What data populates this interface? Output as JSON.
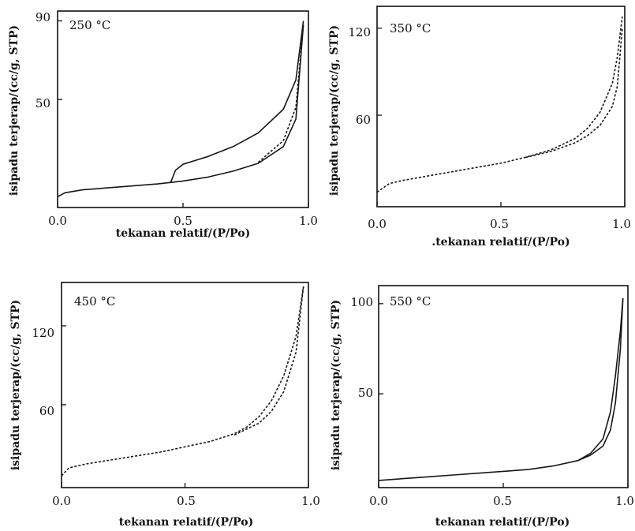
{
  "chart_data": [
    {
      "type": "line",
      "title": "250 °C",
      "xlabel": "tekanan relatif/(P/Po)",
      "ylabel": "isipadu terjerap/(cc/g, STP)",
      "xlim": [
        0,
        1
      ],
      "ylim": [
        -5,
        95
      ],
      "x_ticks": [
        0,
        0.5,
        1.0
      ],
      "x_tick_labels": [
        "0.0",
        "0.5",
        "1.0"
      ],
      "y_ticks": [
        50,
        90
      ],
      "y_tick_labels": [
        "50",
        "90"
      ],
      "series": [
        {
          "style": "solid",
          "x": [
            0.0,
            0.03,
            0.1,
            0.2,
            0.3,
            0.4,
            0.5,
            0.6,
            0.7,
            0.8,
            0.9,
            0.95,
            0.98
          ],
          "y": [
            0.5,
            2.5,
            4,
            5,
            6,
            7,
            8.5,
            10.5,
            13.5,
            17.5,
            26,
            40,
            88
          ]
        },
        {
          "style": "solid",
          "x": [
            0.45,
            0.47,
            0.5,
            0.6,
            0.7,
            0.8,
            0.9,
            0.95,
            0.98
          ],
          "y": [
            7.5,
            14,
            17,
            21,
            26,
            33,
            45,
            60,
            90
          ]
        },
        {
          "style": "dashed",
          "x": [
            0.8,
            0.9,
            0.95,
            0.98
          ],
          "y": [
            18,
            29,
            46,
            88
          ]
        }
      ]
    },
    {
      "type": "line",
      "title": "350 °C",
      "xlabel": ".tekanan relatif/(P/Po)",
      "ylabel": "isipadu terjerap/(cc/g, STP)",
      "xlim": [
        0,
        1
      ],
      "ylim": [
        -3,
        135
      ],
      "x_ticks": [
        0,
        0.5,
        1.0
      ],
      "x_tick_labels": [
        "0.0",
        "0.5",
        "1.0"
      ],
      "y_ticks": [
        60,
        120
      ],
      "y_tick_labels": [
        "60",
        "120"
      ],
      "series": [
        {
          "style": "dotted",
          "x": [
            0.0,
            0.05,
            0.1,
            0.2,
            0.3,
            0.4,
            0.5,
            0.6,
            0.7,
            0.8,
            0.85,
            0.9,
            0.95,
            0.97,
            0.99
          ],
          "y": [
            7,
            13,
            15,
            18,
            21,
            24,
            27,
            31,
            36,
            44,
            51,
            62,
            82,
            100,
            128
          ]
        },
        {
          "style": "dashed",
          "x": [
            0.6,
            0.7,
            0.8,
            0.85,
            0.9,
            0.95,
            0.97,
            0.99
          ],
          "y": [
            31,
            35,
            41,
            46,
            53,
            66,
            80,
            120
          ]
        }
      ]
    },
    {
      "type": "line",
      "title": "450 °C",
      "xlabel": "tekanan relatif/(P/Po)",
      "ylabel": "isipadu terjerap/(cc/g, STP)",
      "xlim": [
        0,
        1
      ],
      "ylim": [
        -3,
        153
      ],
      "x_ticks": [
        0,
        0.5,
        1.0
      ],
      "x_tick_labels": [
        "0.0",
        "0.5",
        "1.0"
      ],
      "y_ticks": [
        60,
        120
      ],
      "y_tick_labels": [
        "60",
        "120"
      ],
      "series": [
        {
          "style": "dashed",
          "x": [
            0.0,
            0.03,
            0.1,
            0.2,
            0.3,
            0.4,
            0.5,
            0.6,
            0.7,
            0.75,
            0.8,
            0.85,
            0.9,
            0.95,
            0.98
          ],
          "y": [
            6,
            12,
            15,
            18,
            21,
            24,
            28,
            32,
            38,
            43,
            51,
            63,
            82,
            112,
            150
          ]
        },
        {
          "style": "dotted",
          "x": [
            0.7,
            0.8,
            0.85,
            0.9,
            0.95,
            0.98
          ],
          "y": [
            37,
            46,
            55,
            70,
            100,
            150
          ]
        }
      ]
    },
    {
      "type": "line",
      "title": "550 °C",
      "xlabel": "tekanan relatif/(P/Po)",
      "ylabel": "isipadu terjerap/(cc/g, STP)",
      "xlim": [
        0,
        1
      ],
      "ylim": [
        -2,
        110
      ],
      "x_ticks": [
        0,
        0.5,
        1.0
      ],
      "x_tick_labels": [
        "0.0",
        "0.5",
        "1.0"
      ],
      "y_ticks": [
        50,
        100
      ],
      "y_tick_labels": [
        "50",
        "100"
      ],
      "series": [
        {
          "style": "solid",
          "x": [
            0.0,
            0.1,
            0.2,
            0.3,
            0.4,
            0.5,
            0.6,
            0.7,
            0.8,
            0.85,
            0.9,
            0.93,
            0.95,
            0.97,
            0.98
          ],
          "y": [
            2,
            3,
            4,
            5,
            6,
            7,
            8,
            10,
            13,
            17,
            25,
            40,
            60,
            85,
            103
          ]
        },
        {
          "style": "solid",
          "x": [
            0.8,
            0.85,
            0.9,
            0.93,
            0.95,
            0.97,
            0.98
          ],
          "y": [
            13,
            16,
            21,
            30,
            45,
            75,
            103
          ]
        }
      ]
    }
  ]
}
